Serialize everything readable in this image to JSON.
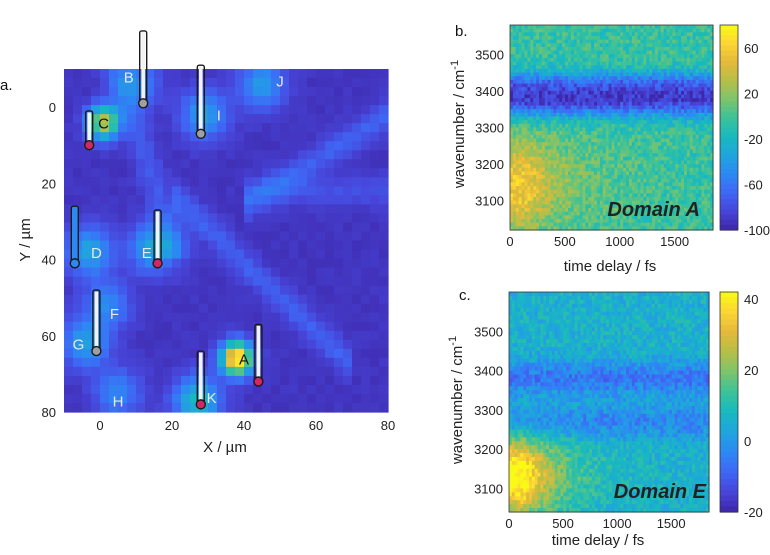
{
  "colors": {
    "parula": [
      "#3e26a8",
      "#4745d9",
      "#3f67f5",
      "#2c89f3",
      "#1fa5dc",
      "#18b9c0",
      "#3bc29a",
      "#7cc46c",
      "#b6bf48",
      "#e4b93a",
      "#fcd535",
      "#f9fb15"
    ],
    "marker_gray": "#a0a0a0",
    "marker_blue": "#2c89f3",
    "marker_red": "#d12860"
  },
  "chart_data": [
    {
      "panel": "a.",
      "type": "heatmap",
      "xlabel": "X / µm",
      "ylabel": "Y / µm",
      "xlim": [
        -10,
        80
      ],
      "ylim": [
        80,
        -10
      ],
      "xticks": [
        0,
        20,
        40,
        60,
        80
      ],
      "yticks": [
        0,
        20,
        40,
        60,
        80
      ],
      "hotspots": [
        {
          "label": "A",
          "x": 38,
          "y": 66,
          "intensity": 1.0
        },
        {
          "label": "C",
          "x": 1,
          "y": 4,
          "intensity": 0.72
        },
        {
          "label": "D",
          "x": -3,
          "y": 38,
          "intensity": 0.32
        },
        {
          "label": "E",
          "x": 15,
          "y": 37,
          "intensity": 0.34
        },
        {
          "label": "G",
          "x": -4,
          "y": 62,
          "intensity": 0.3
        },
        {
          "label": "K",
          "x": 27,
          "y": 77,
          "intensity": 0.4
        },
        {
          "label": "I",
          "x": 29,
          "y": 2,
          "intensity": 0.3
        },
        {
          "label": "J",
          "x": 45,
          "y": -6,
          "intensity": 0.28
        },
        {
          "label": "B",
          "x": 10,
          "y": -6,
          "intensity": 0.22
        },
        {
          "label": "F",
          "x": 2,
          "y": 52,
          "intensity": 0.22
        },
        {
          "label": "H",
          "x": 5,
          "y": 75,
          "intensity": 0.22
        }
      ],
      "letters": [
        {
          "text": "A",
          "x": 40,
          "y": 66
        },
        {
          "text": "B",
          "x": 8,
          "y": -8
        },
        {
          "text": "C",
          "x": 1,
          "y": 4
        },
        {
          "text": "D",
          "x": -1,
          "y": 38
        },
        {
          "text": "E",
          "x": 13,
          "y": 38
        },
        {
          "text": "F",
          "x": 4,
          "y": 54
        },
        {
          "text": "G",
          "x": -6,
          "y": 62
        },
        {
          "text": "H",
          "x": 5,
          "y": 77
        },
        {
          "text": "I",
          "x": 33,
          "y": 2
        },
        {
          "text": "J",
          "x": 50,
          "y": -7
        },
        {
          "text": "K",
          "x": 31,
          "y": 76
        }
      ],
      "markers": [
        {
          "label": "B",
          "x": 12,
          "y_top": -20,
          "y_bottom": -1,
          "color": "gray"
        },
        {
          "label": "C",
          "x": -3,
          "y_top": 1,
          "y_bottom": 10,
          "color": "red"
        },
        {
          "label": "I",
          "x": 28,
          "y_top": -11,
          "y_bottom": 7,
          "color": "gray"
        },
        {
          "label": "D",
          "x": -7,
          "y_top": 26,
          "y_bottom": 41,
          "color": "blue"
        },
        {
          "label": "E",
          "x": 16,
          "y_top": 27,
          "y_bottom": 41,
          "color": "red"
        },
        {
          "label": "G",
          "x": -1,
          "y_top": 48,
          "y_bottom": 64,
          "color": "gray"
        },
        {
          "label": "A",
          "x": 44,
          "y_top": 57,
          "y_bottom": 72,
          "color": "red"
        },
        {
          "label": "K",
          "x": 28,
          "y_top": 64,
          "y_bottom": 78,
          "color": "red"
        }
      ],
      "colormap": "parula"
    },
    {
      "panel": "b.",
      "type": "heatmap",
      "title": "Domain A",
      "xlabel": "time delay / fs",
      "ylabel": "wavenumber / cm",
      "ylabel_superscript": "-1",
      "xlim": [
        0,
        1850
      ],
      "ylim": [
        3020,
        3580
      ],
      "xticks": [
        0,
        500,
        1000,
        1500
      ],
      "yticks": [
        3100,
        3200,
        3300,
        3400,
        3500
      ],
      "colorbar": {
        "min": -100,
        "max": 80,
        "ticks": [
          -100,
          -60,
          -20,
          20,
          60
        ]
      },
      "background_value": -5,
      "features": [
        {
          "kind": "band",
          "center_cm": 3380,
          "width_cm": 35,
          "value": -85,
          "decay_fs": 0
        },
        {
          "kind": "band",
          "center_cm": 3430,
          "width_cm": 20,
          "value": -25,
          "decay_fs": 0
        },
        {
          "kind": "hot",
          "center_cm": 3130,
          "width_cm": 80,
          "value": 60,
          "decay_fs": 380
        },
        {
          "kind": "band",
          "center_cm": 3240,
          "width_cm": 60,
          "value": 12,
          "decay_fs": 600
        }
      ]
    },
    {
      "panel": "c.",
      "type": "heatmap",
      "title": "Domain E",
      "xlabel": "time delay / fs",
      "ylabel": "wavenumber / cm",
      "ylabel_superscript": "-1",
      "xlim": [
        0,
        1850
      ],
      "ylim": [
        3040,
        3600
      ],
      "xticks": [
        0,
        500,
        1000,
        1500
      ],
      "yticks": [
        3100,
        3200,
        3300,
        3400,
        3500
      ],
      "colorbar": {
        "min": -20,
        "max": 42,
        "ticks": [
          -20,
          0,
          20,
          40
        ]
      },
      "background_value": 6,
      "features": [
        {
          "kind": "band",
          "center_cm": 3380,
          "width_cm": 30,
          "value": -12,
          "decay_fs": 0
        },
        {
          "kind": "band",
          "center_cm": 3270,
          "width_cm": 30,
          "value": -10,
          "decay_fs": 0
        },
        {
          "kind": "hot",
          "center_cm": 3130,
          "width_cm": 70,
          "value": 38,
          "decay_fs": 320
        }
      ]
    }
  ]
}
